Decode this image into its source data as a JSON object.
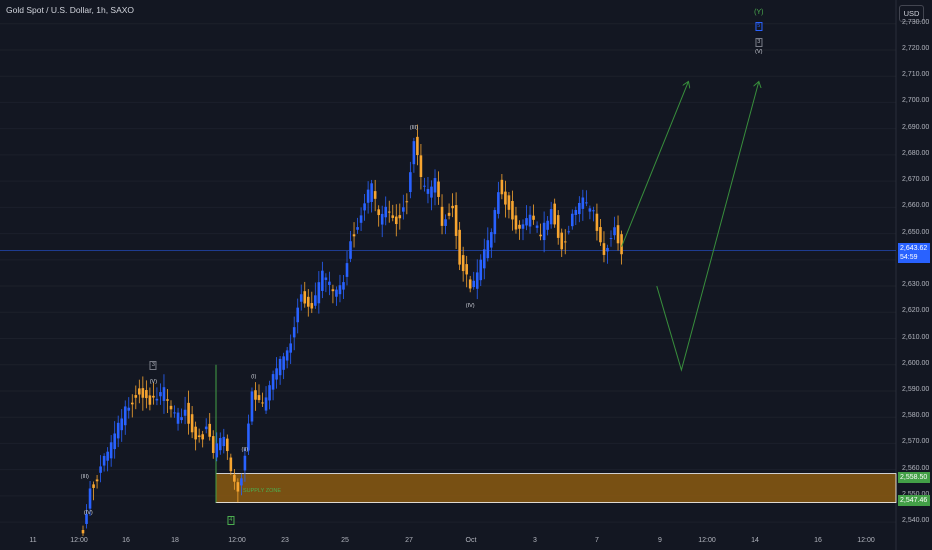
{
  "header": {
    "symbol_title": "Gold Spot / U.S. Dollar, 1h, SAXO"
  },
  "currency_button": "USD",
  "chart_data": {
    "type": "candlestick",
    "title": "Gold Spot / U.S. Dollar, 1h, SAXO",
    "y_axis": {
      "ticks": [
        "2,540.00",
        "2,550.00",
        "2,560.00",
        "2,570.00",
        "2,580.00",
        "2,590.00",
        "2,600.00",
        "2,610.00",
        "2,620.00",
        "2,630.00",
        "2,640.00",
        "2,650.00",
        "2,660.00",
        "2,670.00",
        "2,680.00",
        "2,690.00",
        "2,700.00",
        "2,710.00",
        "2,720.00",
        "2,730.00"
      ],
      "range": [
        2537,
        2736
      ]
    },
    "x_axis": {
      "ticks": [
        "11",
        "12:00",
        "16",
        "18",
        "12:00",
        "23",
        "25",
        "27",
        "Oct",
        "3",
        "7",
        "9",
        "12:00",
        "14",
        "16",
        "12:00"
      ]
    },
    "last_price": "2,643.62",
    "countdown": "54:59",
    "zone": {
      "label": "SUPPLY ZONE",
      "upper": "2,558.50",
      "lower": "2,547.46",
      "upper_value": 2558.5,
      "lower_value": 2547.46
    },
    "price_path": [
      [
        0,
        2537
      ],
      [
        2,
        2553
      ],
      [
        5,
        2560
      ],
      [
        9,
        2572
      ],
      [
        13,
        2586
      ],
      [
        16,
        2590
      ],
      [
        20,
        2585
      ],
      [
        23,
        2589
      ],
      [
        26,
        2580
      ],
      [
        29,
        2583
      ],
      [
        32,
        2572
      ],
      [
        35,
        2575
      ],
      [
        37,
        2566
      ],
      [
        40,
        2572
      ],
      [
        42,
        2560
      ],
      [
        44,
        2552
      ],
      [
        46,
        2566
      ],
      [
        48,
        2590
      ],
      [
        51,
        2583
      ],
      [
        53,
        2592
      ],
      [
        56,
        2600
      ],
      [
        59,
        2610
      ],
      [
        62,
        2628
      ],
      [
        65,
        2621
      ],
      [
        68,
        2634
      ],
      [
        71,
        2628
      ],
      [
        74,
        2632
      ],
      [
        76,
        2648
      ],
      [
        79,
        2657
      ],
      [
        82,
        2668
      ],
      [
        84,
        2655
      ],
      [
        86,
        2660
      ],
      [
        89,
        2655
      ],
      [
        92,
        2664
      ],
      [
        94,
        2685
      ],
      [
        96,
        2670
      ],
      [
        98,
        2665
      ],
      [
        100,
        2670
      ],
      [
        102,
        2655
      ],
      [
        105,
        2660
      ],
      [
        107,
        2640
      ],
      [
        110,
        2628
      ],
      [
        113,
        2638
      ],
      [
        116,
        2650
      ],
      [
        118,
        2668
      ],
      [
        121,
        2660
      ],
      [
        124,
        2650
      ],
      [
        127,
        2657
      ],
      [
        130,
        2648
      ],
      [
        133,
        2660
      ],
      [
        136,
        2645
      ],
      [
        139,
        2656
      ],
      [
        142,
        2662
      ],
      [
        145,
        2658
      ],
      [
        148,
        2642
      ],
      [
        151,
        2653
      ],
      [
        153,
        2643
      ]
    ],
    "wave_labels": [
      {
        "text": "(IV)",
        "i": 1.5,
        "y": 2543
      },
      {
        "text": "(III)",
        "i": 0.5,
        "y": 2557
      },
      {
        "text": "(V)",
        "i": 20,
        "y": 2593
      },
      {
        "text": "(I)",
        "i": 48.5,
        "y": 2595
      },
      {
        "text": "(II)",
        "i": 46,
        "y": 2567
      },
      {
        "text": "(III)",
        "i": 94,
        "y": 2690
      },
      {
        "text": "(IV)",
        "i": 110,
        "y": 2622
      },
      {
        "text": "(Y)",
        "i": 192,
        "y": 2734
      },
      {
        "text": "(V)",
        "i": 192,
        "y": 2719
      }
    ],
    "wave_boxes": [
      {
        "text": "3",
        "i": 20,
        "y": 2600
      },
      {
        "text": "4",
        "i": 42,
        "y": 2541
      },
      {
        "text": "5",
        "i": 192,
        "y": 2729
      },
      {
        "text": "3",
        "i": 192,
        "y": 2723
      }
    ],
    "projections": [
      {
        "points": [
          [
            153,
            2645
          ],
          [
            172,
            2708
          ]
        ]
      },
      {
        "points": [
          [
            163,
            2630
          ],
          [
            170,
            2598
          ],
          [
            192,
            2708
          ]
        ]
      }
    ],
    "colors": {
      "up": "#2962ff",
      "down": "#f7a530",
      "zone": "#8b5a10",
      "zone_border": "#ffffff",
      "projection": "#388e3c",
      "price_line": "#2962ff",
      "background": "#131722"
    }
  }
}
